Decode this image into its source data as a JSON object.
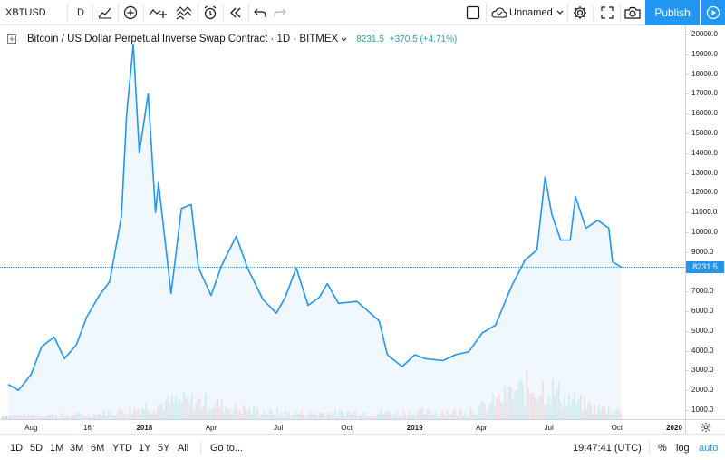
{
  "toolbar": {
    "symbol": "XBTUSD",
    "interval": "D",
    "layout_name": "Unnamed",
    "publish_label": "Publish",
    "icons": [
      "bar-style-icon",
      "add-indicator-icon",
      "compare-icon",
      "indicators-icon",
      "alert-icon",
      "replay-icon",
      "undo-icon",
      "redo-icon",
      "layout-icon",
      "cloud-icon",
      "chevron-down-icon",
      "settings-icon",
      "fullscreen-icon",
      "camera-icon",
      "play-icon"
    ]
  },
  "legend": {
    "title": "Bitcoin / US Dollar Perpetual Inverse Swap Contract · 1D · BITMEX",
    "last": "8231.5",
    "change": "+370.5 (+4.71%)"
  },
  "price_scale": {
    "labels": [
      "20000.0",
      "19000.0",
      "18000.0",
      "17000.0",
      "16000.0",
      "15000.0",
      "14000.0",
      "13000.0",
      "12000.0",
      "11000.0",
      "10000.0",
      "9000.0",
      "8000.0",
      "7000.0",
      "6000.0",
      "5000.0",
      "4000.0",
      "3000.0",
      "2000.0",
      "1000.0"
    ],
    "last_price_tag": "8231.5"
  },
  "time_scale": {
    "labels": [
      "Aug",
      "16",
      "2018",
      "Apr",
      "Jul",
      "Oct",
      "2019",
      "Apr",
      "Jul",
      "Oct",
      "2020"
    ]
  },
  "bottombar": {
    "ranges": [
      "1D",
      "5D",
      "1M",
      "3M",
      "6M",
      "YTD",
      "1Y",
      "5Y",
      "All"
    ],
    "goto_label": "Go to...",
    "clock": "19:47:41 (UTC)",
    "percent_label": "%",
    "log_label": "log",
    "auto_label": "auto"
  },
  "colors": {
    "accent": "#2196f3",
    "line": "#2196f3",
    "area_fill": "#e3f2fd",
    "volume_up": "#26a69a",
    "volume_down": "#ef5350",
    "positive": "#26a69a"
  },
  "chart_data": {
    "type": "area",
    "symbol": "XBTUSD",
    "exchange": "BITMEX",
    "interval": "1D",
    "ylim": [
      1000,
      20000
    ],
    "series": [
      {
        "x": [
          "2017-07-01",
          "2017-07-15",
          "2017-08-01",
          "2017-08-15",
          "2017-09-01",
          "2017-09-15",
          "2017-10-01",
          "2017-10-15",
          "2017-11-01",
          "2017-11-15",
          "2017-12-01",
          "2017-12-08",
          "2017-12-17",
          "2017-12-25",
          "2018-01-06",
          "2018-01-16",
          "2018-01-20",
          "2018-02-06",
          "2018-02-20",
          "2018-03-05",
          "2018-03-15",
          "2018-04-01",
          "2018-04-15",
          "2018-05-05",
          "2018-05-20",
          "2018-06-10",
          "2018-06-28",
          "2018-07-10",
          "2018-07-25",
          "2018-08-10",
          "2018-08-25",
          "2018-09-05",
          "2018-09-20",
          "2018-10-15",
          "2018-11-14",
          "2018-11-25",
          "2018-12-15",
          "2019-01-01",
          "2019-01-15",
          "2019-02-08",
          "2019-02-25",
          "2019-03-15",
          "2019-04-02",
          "2019-04-20",
          "2019-05-12",
          "2019-05-30",
          "2019-06-15",
          "2019-06-26",
          "2019-07-05",
          "2019-07-17",
          "2019-07-30",
          "2019-08-06",
          "2019-08-20",
          "2019-09-05",
          "2019-09-20",
          "2019-09-25",
          "2019-10-07"
        ],
        "values": [
          2300,
          2000,
          2800,
          4200,
          4700,
          3600,
          4300,
          5700,
          6800,
          7500,
          10800,
          16000,
          19500,
          14000,
          17000,
          11000,
          12500,
          6900,
          11200,
          11400,
          8200,
          6800,
          8300,
          9800,
          8200,
          6600,
          5900,
          6700,
          8200,
          6300,
          6700,
          7400,
          6400,
          6500,
          5500,
          3800,
          3200,
          3800,
          3600,
          3500,
          3800,
          3950,
          4900,
          5300,
          7300,
          8600,
          9100,
          12800,
          10900,
          9600,
          9600,
          11800,
          10200,
          10600,
          10200,
          8500,
          8231.5
        ]
      }
    ],
    "last_price": 8231.5,
    "change": 370.5,
    "change_percent": 4.71
  }
}
